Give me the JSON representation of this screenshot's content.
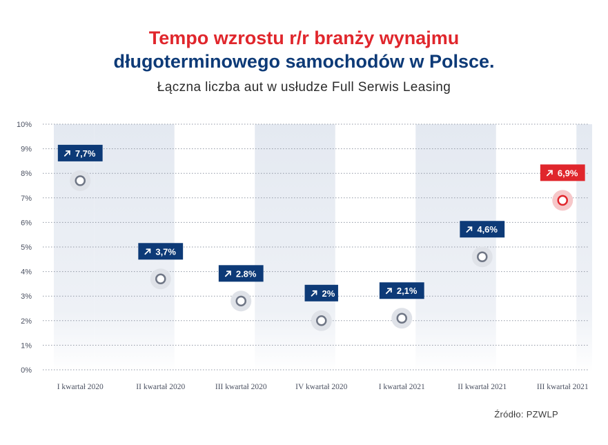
{
  "title_line1": "Tempo wzrostu r/r branży wynajmu",
  "title_line2": "długoterminowego samochodów w Polsce.",
  "subtitle": "Łączna liczba aut w usłudze Full Serwis Leasing",
  "source": "Źródło: PZWLP",
  "colors": {
    "navy": "#0d3a77",
    "red": "#e0262c",
    "stem_gray": "#9aa1ad",
    "band": "#e9edf4"
  },
  "chart_data": {
    "type": "lollipop",
    "categories": [
      "I kwartał 2020",
      "II kwartał 2020",
      "III kwartał 2020",
      "IV kwartał 2020",
      "I kwartał 2021",
      "II kwartał 2021",
      "III kwartał 2021"
    ],
    "values": [
      7.7,
      3.7,
      2.8,
      2.0,
      2.1,
      4.6,
      6.9
    ],
    "value_labels": [
      "7,7%",
      "3,7%",
      "2.8%",
      "2%",
      "2,1%",
      "4,6%",
      "6,9%"
    ],
    "highlight_index": 6,
    "label_icon": "arrow-up-right-icon",
    "y_ticks": [
      "0%",
      "1%",
      "2%",
      "3%",
      "4%",
      "5%",
      "6%",
      "7%",
      "8%",
      "9%",
      "10%"
    ],
    "ylim": [
      0,
      10
    ],
    "grid": true
  }
}
